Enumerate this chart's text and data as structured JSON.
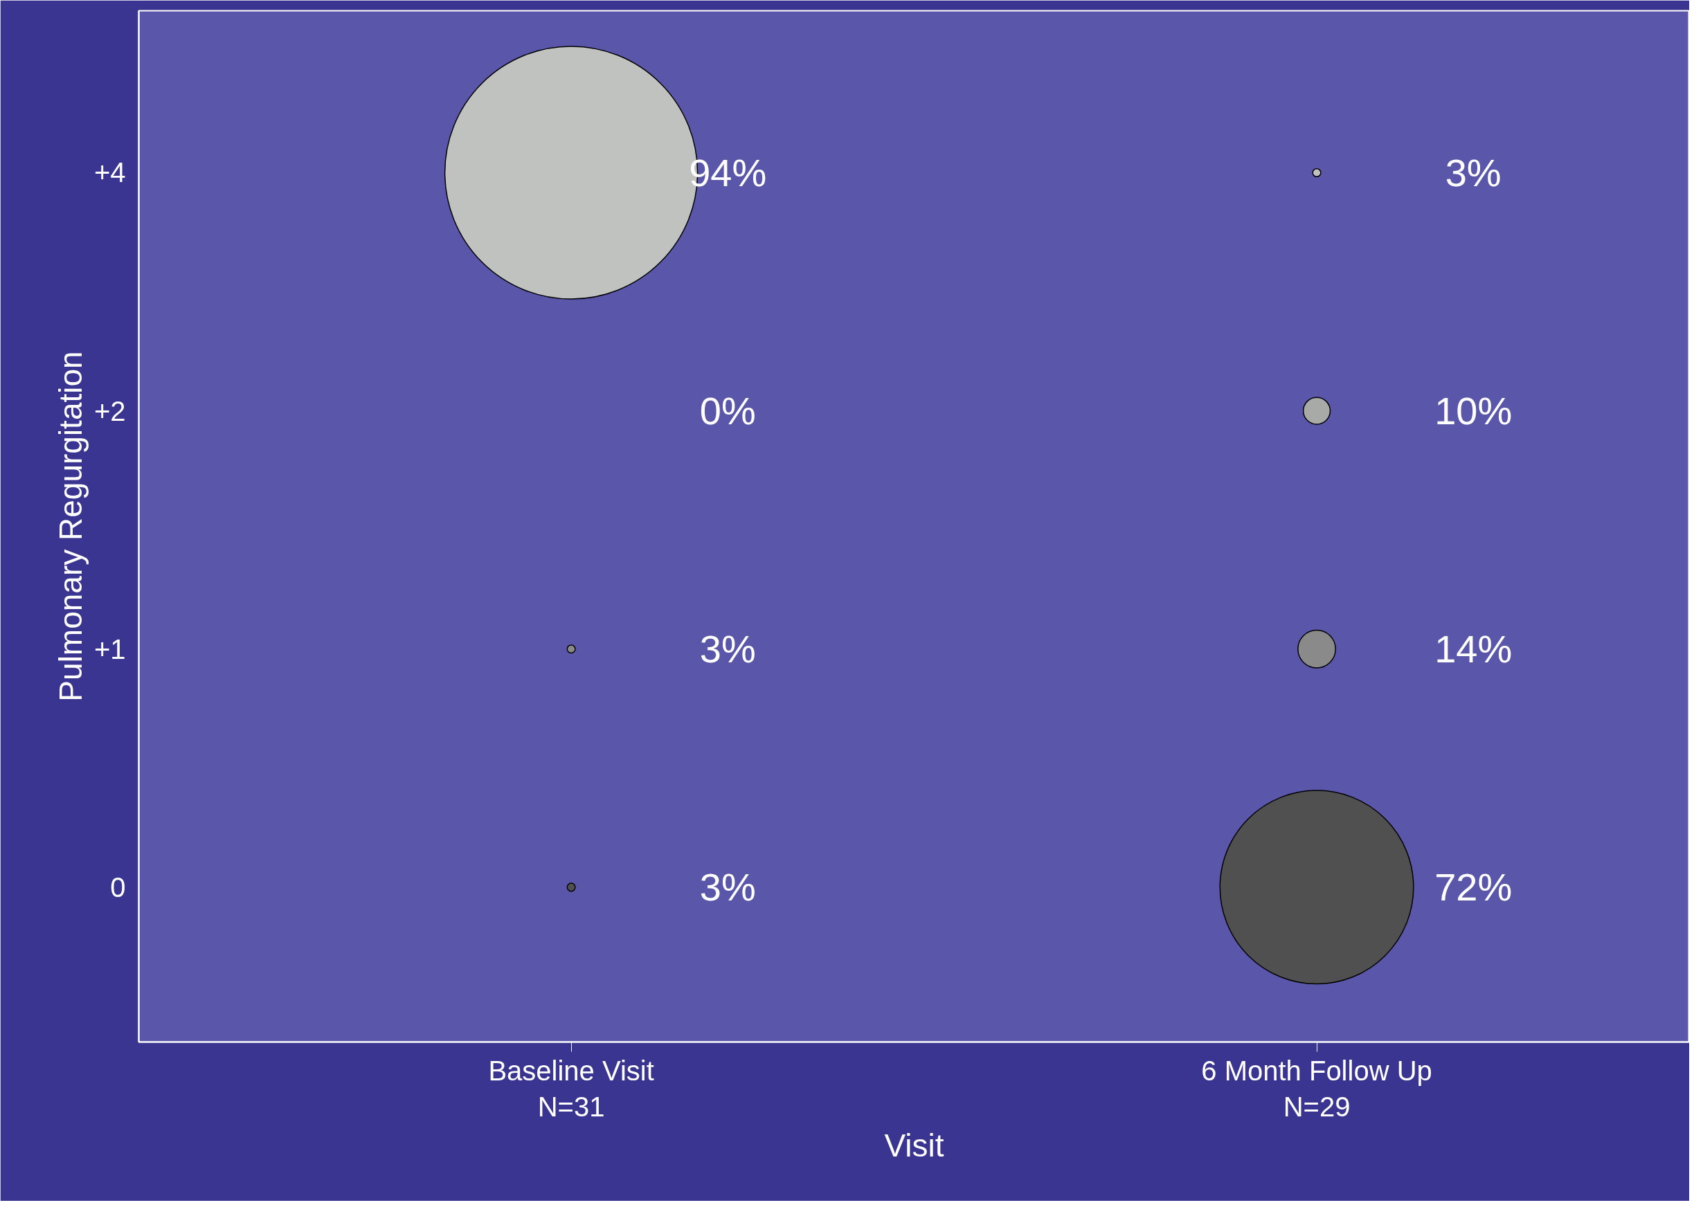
{
  "chart_data": {
    "type": "other",
    "xlabel": "Visit",
    "ylabel": "Pulmonary Regurgitation",
    "categories": [
      "Baseline Visit\nN=31",
      "6 Month Follow Up\nN=29"
    ],
    "y_categories": [
      "+4",
      "+2",
      "+1",
      "0"
    ],
    "series": [
      {
        "color": "#c0c2c0",
        "values": [
          94,
          3
        ],
        "value_labels": [
          "94%",
          "3%"
        ]
      },
      {
        "color": "#a8aaa8",
        "values": [
          0,
          10
        ],
        "value_labels": [
          "0%",
          "10%"
        ]
      },
      {
        "color": "#8a8a8a",
        "values": [
          3,
          14
        ],
        "value_labels": [
          "3%",
          "14%"
        ]
      },
      {
        "color": "#505050",
        "values": [
          3,
          72
        ],
        "value_labels": [
          "3%",
          "72%"
        ]
      }
    ]
  }
}
